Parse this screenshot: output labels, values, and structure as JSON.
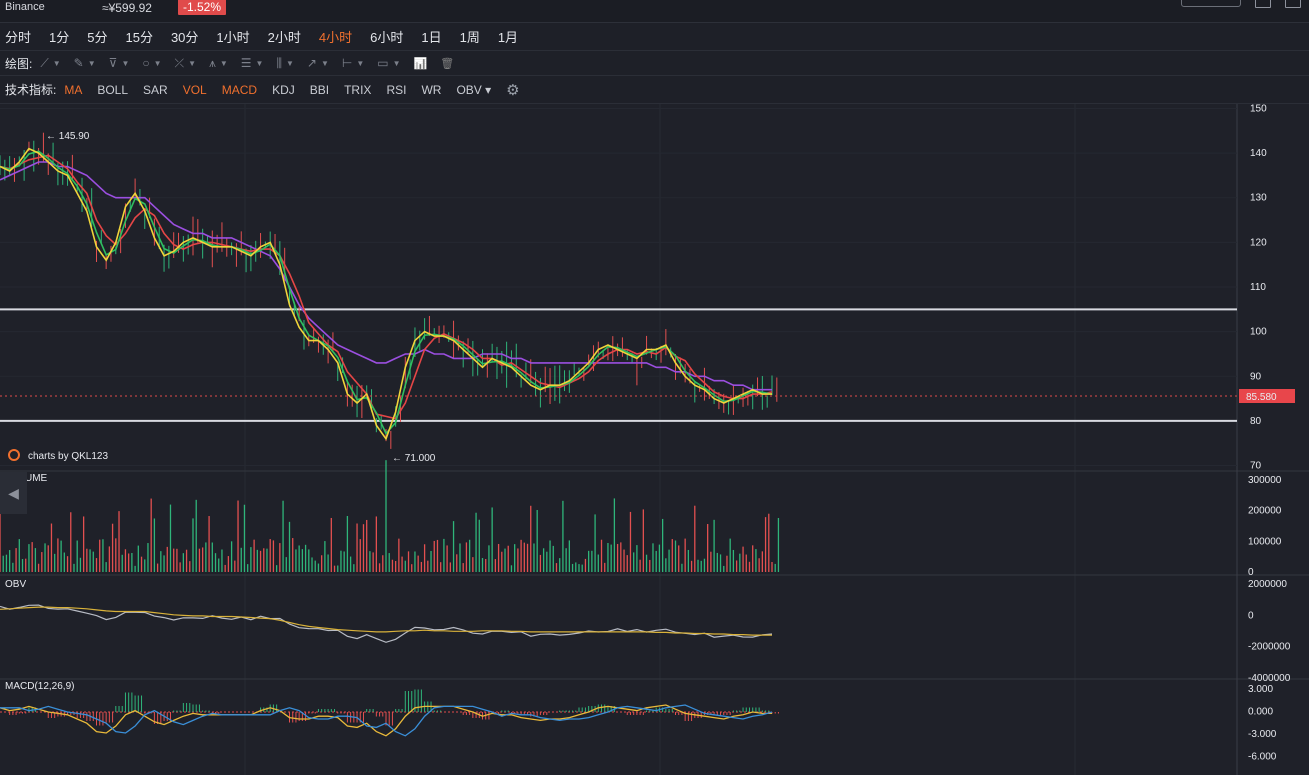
{
  "header": {
    "exchange": "Binance",
    "price": "≈¥599.92",
    "change": "-1.52%"
  },
  "timeframes": [
    {
      "label": "分时",
      "active": false
    },
    {
      "label": "1分",
      "active": false
    },
    {
      "label": "5分",
      "active": false
    },
    {
      "label": "15分",
      "active": false
    },
    {
      "label": "30分",
      "active": false
    },
    {
      "label": "1小时",
      "active": false
    },
    {
      "label": "2小时",
      "active": false
    },
    {
      "label": "4小时",
      "active": true
    },
    {
      "label": "6小时",
      "active": false
    },
    {
      "label": "1日",
      "active": false
    },
    {
      "label": "1周",
      "active": false
    },
    {
      "label": "1月",
      "active": false
    }
  ],
  "drawing": {
    "label": "绘图:",
    "tools": [
      {
        "icon": "line-icon",
        "glyph": "⟋"
      },
      {
        "icon": "pen-icon",
        "glyph": "✎"
      },
      {
        "icon": "channel-icon",
        "glyph": "⊽"
      },
      {
        "icon": "circle-icon",
        "glyph": "○"
      },
      {
        "icon": "cross-line-icon",
        "glyph": "⤫"
      },
      {
        "icon": "pattern-icon",
        "glyph": "⩚"
      },
      {
        "icon": "fib-icon",
        "glyph": "☰"
      },
      {
        "icon": "gann-icon",
        "glyph": "⫼"
      },
      {
        "icon": "arrow-icon",
        "glyph": "↗"
      },
      {
        "icon": "measure-icon",
        "glyph": "⊢"
      },
      {
        "icon": "comment-icon",
        "glyph": "▭"
      }
    ],
    "extra_icons": [
      {
        "icon": "bar-chart-icon",
        "glyph": "📊"
      },
      {
        "icon": "trash-icon",
        "glyph": "🗑"
      }
    ]
  },
  "indicators": {
    "label": "技术指标:",
    "items": [
      {
        "label": "MA",
        "active": true
      },
      {
        "label": "BOLL",
        "active": false
      },
      {
        "label": "SAR",
        "active": false
      },
      {
        "label": "VOL",
        "active": true
      },
      {
        "label": "MACD",
        "active": true
      },
      {
        "label": "KDJ",
        "active": false
      },
      {
        "label": "BBI",
        "active": false
      },
      {
        "label": "TRIX",
        "active": false
      },
      {
        "label": "RSI",
        "active": false
      },
      {
        "label": "WR",
        "active": false
      },
      {
        "label": "OBV",
        "active": false
      }
    ],
    "settings_icon": "gear-icon"
  },
  "watermark": "charts by QKL123",
  "chart_data": {
    "type": "line",
    "price_axis": {
      "ticks": [
        150,
        140,
        130,
        120,
        110,
        100,
        90,
        80,
        70
      ],
      "range": [
        69,
        151
      ]
    },
    "current_price": "85.580",
    "high_annotation": "145.90",
    "low_annotation": "71.000",
    "horizontal_lines": [
      105,
      80
    ],
    "ma_short": [
      137,
      136,
      138,
      141,
      140,
      138,
      136,
      135,
      131,
      127,
      119,
      116,
      120,
      128,
      131,
      127,
      121,
      117,
      118,
      120,
      121,
      120,
      119,
      119,
      119,
      118,
      117,
      119,
      120,
      115,
      106,
      101,
      98,
      98,
      96,
      93,
      86,
      84,
      86,
      79,
      76,
      82,
      92,
      98,
      100,
      99,
      99,
      98,
      96,
      94,
      92,
      94,
      93,
      92,
      90,
      88,
      87,
      88,
      88,
      89,
      91,
      93,
      96,
      97,
      96,
      95,
      94,
      96,
      96,
      97,
      93,
      90,
      88,
      87,
      85,
      84,
      85,
      86,
      87,
      86,
      86
    ],
    "ma_long": [
      134,
      135,
      136,
      137,
      138,
      138,
      137,
      137,
      136,
      135,
      133,
      131,
      130,
      130,
      130,
      130,
      128,
      126,
      124,
      123,
      122,
      122,
      121,
      121,
      121,
      120,
      119,
      118,
      117,
      114,
      110,
      106,
      103,
      101,
      99,
      97,
      96,
      95,
      94,
      93,
      93,
      94,
      95,
      95,
      96,
      95,
      95,
      94,
      94,
      94,
      95,
      95,
      95,
      94,
      94,
      93,
      93,
      93,
      93,
      93,
      93,
      93,
      93,
      93,
      93,
      93,
      93,
      93,
      92,
      92,
      91,
      91,
      90,
      90,
      89,
      89,
      88,
      88,
      87,
      87,
      87
    ],
    "volume": {
      "ticks": [
        "300000",
        "200000",
        "100000",
        "0"
      ]
    },
    "obv": {
      "ticks": [
        "2000000",
        "0",
        "-2000000",
        "-4000000"
      ]
    },
    "macd": {
      "label": "MACD(12,26,9)",
      "ticks": [
        "3.000",
        "0.000",
        "-3.000",
        "-6.000"
      ]
    },
    "panes": {
      "volume_title": "VOLUME",
      "obv_title": "OBV"
    }
  }
}
